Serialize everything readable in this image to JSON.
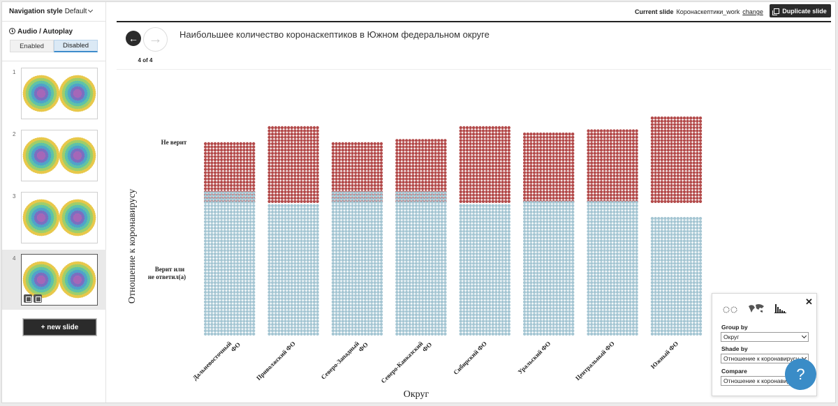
{
  "sidebar": {
    "nav_style_label": "Navigation style",
    "nav_style_value": "Default",
    "audio_label": "Audio / Autoplay",
    "audio_enabled": "Enabled",
    "audio_disabled": "Disabled",
    "slides": [
      {
        "num": "1"
      },
      {
        "num": "2"
      },
      {
        "num": "3"
      },
      {
        "num": "4"
      }
    ],
    "new_slide": "+ new slide"
  },
  "topbar": {
    "current_slide_label": "Current slide",
    "current_slide_name": "Коронаскептики_work",
    "change_link": "change",
    "duplicate_button": "Duplicate slide"
  },
  "slide_nav": {
    "counter": "4 of 4",
    "title": "Наибольшее количество коронаскептиков в Южном федеральном округе"
  },
  "chart_data": {
    "type": "unit_bar",
    "xlabel": "Округ",
    "ylabel": "Отношение к коронавирусу",
    "row_labels": [
      "Не верит",
      "Верит или не ответил(а)"
    ],
    "categories": [
      "Дальневосточный ФО",
      "Приволжский ФО",
      "Северо-Западный ФО",
      "Северо-Кавказский ФО",
      "Сибирский ФО",
      "Уральский ФО",
      "Центральный ФО",
      "Южный ФО"
    ],
    "series": [
      {
        "values": [
          19,
          24,
          19,
          20,
          24,
          22,
          23,
          27
        ],
        "color": "#b34a4a"
      },
      {
        "values": [
          45,
          41,
          45,
          45,
          41,
          42,
          42,
          37
        ],
        "color": "#a5c6d3"
      }
    ],
    "ylim": [
      0,
      100
    ]
  },
  "panel": {
    "group_by_label": "Group by",
    "group_by_value": "Округ",
    "shade_by_label": "Shade by",
    "shade_by_value": "Отношение к коронавирусу",
    "compare_label": "Compare",
    "compare_value": "Отношение к коронавирусу"
  },
  "help_label": "?"
}
